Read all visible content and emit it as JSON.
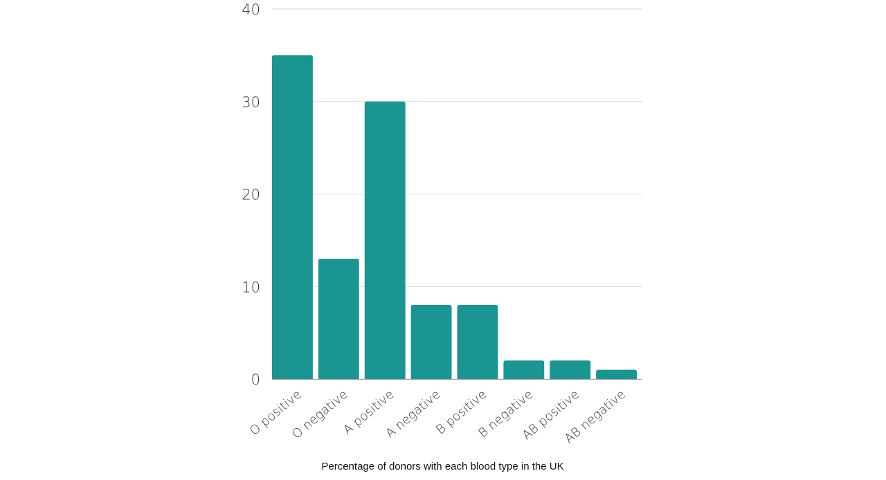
{
  "chart_data": {
    "type": "bar",
    "categories": [
      "O positive",
      "O negative",
      "A positive",
      "A negative",
      "B positive",
      "B negative",
      "AB positive",
      "AB negative"
    ],
    "values": [
      35,
      13,
      30,
      8,
      8,
      2,
      2,
      1
    ],
    "title": "",
    "xlabel": "Percentage of donors with each blood type in the UK",
    "ylabel": "",
    "ylim": [
      0,
      40
    ],
    "yticks": [
      "0",
      "10",
      "20",
      "30",
      "40"
    ],
    "grid": true,
    "bar_color": "#1a9592",
    "legend": "none"
  }
}
